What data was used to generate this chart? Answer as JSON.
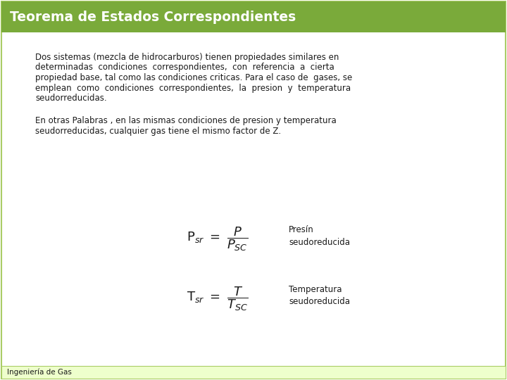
{
  "title": "Teorema de Estados Correspondientes",
  "title_bg_color": "#7aaa3a",
  "title_text_color": "#ffffff",
  "body_bg_color": "#ffffff",
  "footer_bg_color": "#eeffcc",
  "footer_border_color": "#aacc66",
  "footer_text": "Ingeniería de Gas",
  "para1_lines": [
    "Dos sistemas (mezcla de hidrocarburos) tienen propiedades similares en",
    "determinadas  condiciones  correspondientes,  con  referencia  a  cierta",
    "propiedad base, tal como las condiciones criticas. Para el caso de  gases, se",
    "emplean  como  condiciones  correspondientes,  la  presion  y  temperatura",
    "seudorreducidas."
  ],
  "para2_lines": [
    "En otras Palabras , en las mismas condiciones de presion y temperatura",
    "seudorreducidas, cualquier gas tiene el mismo factor de Z."
  ],
  "formula1_label": "Presín\nseudoreducida",
  "formula2_label": "Temperatura\nseudoreducida",
  "border_color": "#aacc66",
  "text_color": "#1a1a1a",
  "font_size_body": 8.5,
  "font_size_title": 13.5,
  "font_size_footer": 7.5,
  "font_size_formula_label": 8.5,
  "font_size_formula": 13
}
